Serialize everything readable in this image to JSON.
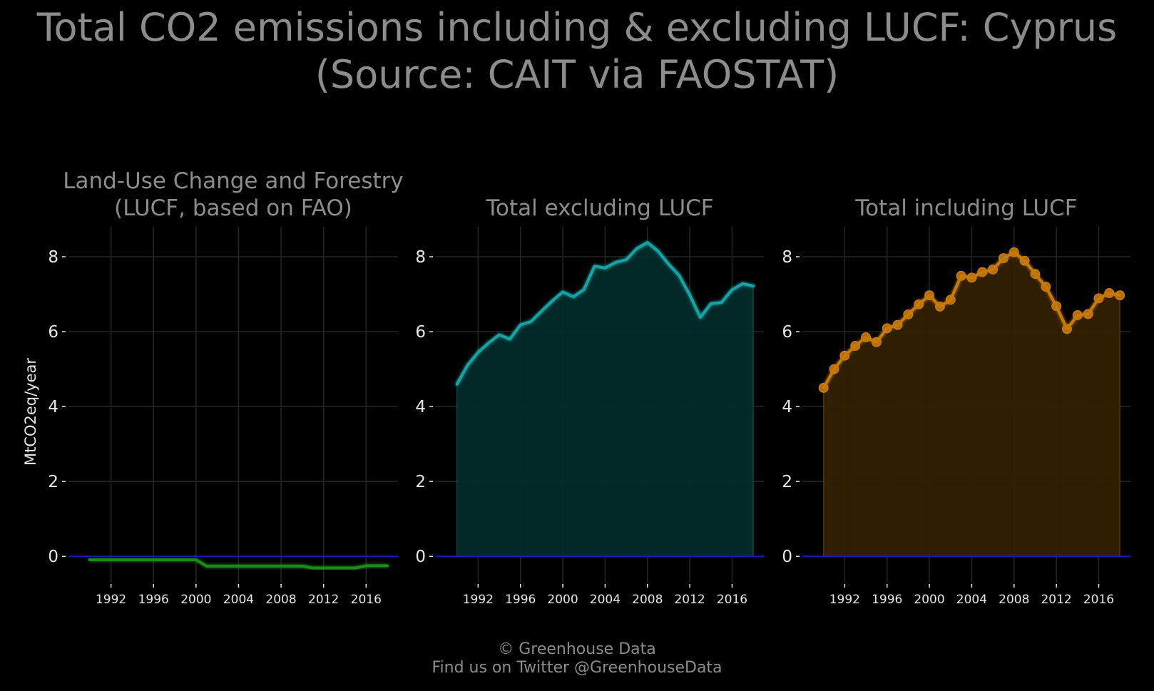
{
  "title_line1": "Total CO2 emissions including & excluding LUCF: Cyprus",
  "title_line2": "(Source: CAIT via FAOSTAT)",
  "footer_line1": "© Greenhouse Data",
  "footer_line2": "Find us on Twitter @GreenhouseData",
  "chart_data": [
    {
      "type": "line",
      "title": "Land-Use Change and Forestry\n(LUCF, based on FAO)",
      "ylabel": "MtCO2eq/year",
      "xlim": [
        1988,
        2019
      ],
      "ylim": [
        -0.7,
        8.8
      ],
      "yticks": [
        0,
        2,
        4,
        6,
        8
      ],
      "xticks": [
        1992,
        1996,
        2000,
        2004,
        2008,
        2012,
        2016
      ],
      "color": "#1a8a1a",
      "fill": false,
      "markers": false,
      "x": [
        1990,
        1991,
        1992,
        1993,
        1994,
        1995,
        1996,
        1997,
        1998,
        1999,
        2000,
        2001,
        2002,
        2003,
        2004,
        2005,
        2006,
        2007,
        2008,
        2009,
        2010,
        2011,
        2012,
        2013,
        2014,
        2015,
        2016,
        2017,
        2018
      ],
      "values": [
        -0.09,
        -0.09,
        -0.09,
        -0.09,
        -0.09,
        -0.09,
        -0.09,
        -0.09,
        -0.09,
        -0.09,
        -0.09,
        -0.26,
        -0.26,
        -0.26,
        -0.26,
        -0.26,
        -0.26,
        -0.26,
        -0.26,
        -0.26,
        -0.26,
        -0.31,
        -0.31,
        -0.31,
        -0.31,
        -0.31,
        -0.25,
        -0.25,
        -0.25
      ]
    },
    {
      "type": "area",
      "title": "Total excluding LUCF",
      "xlim": [
        1988,
        2019
      ],
      "ylim": [
        -0.7,
        8.8
      ],
      "yticks": [
        0,
        2,
        4,
        6,
        8
      ],
      "xticks": [
        1992,
        1996,
        2000,
        2004,
        2008,
        2012,
        2016
      ],
      "color": "#17a3a3",
      "fill": true,
      "fill_color": "#032a2a",
      "markers": false,
      "x": [
        1990,
        1991,
        1992,
        1993,
        1994,
        1995,
        1996,
        1997,
        1998,
        1999,
        2000,
        2001,
        2002,
        2003,
        2004,
        2005,
        2006,
        2007,
        2008,
        2009,
        2010,
        2011,
        2012,
        2013,
        2014,
        2015,
        2016,
        2017,
        2018
      ],
      "values": [
        4.6,
        5.1,
        5.45,
        5.7,
        5.92,
        5.8,
        6.18,
        6.27,
        6.55,
        6.82,
        7.06,
        6.93,
        7.12,
        7.75,
        7.7,
        7.85,
        7.92,
        8.22,
        8.38,
        8.15,
        7.8,
        7.5,
        6.98,
        6.38,
        6.75,
        6.78,
        7.12,
        7.28,
        7.22
      ]
    },
    {
      "type": "area",
      "title": "Total including LUCF",
      "xlim": [
        1988,
        2019
      ],
      "ylim": [
        -0.7,
        8.8
      ],
      "yticks": [
        0,
        2,
        4,
        6,
        8
      ],
      "xticks": [
        1992,
        1996,
        2000,
        2004,
        2008,
        2012,
        2016
      ],
      "color": "#c77a0a",
      "fill": true,
      "fill_color": "#332000",
      "markers": true,
      "x": [
        1990,
        1991,
        1992,
        1993,
        1994,
        1995,
        1996,
        1997,
        1998,
        1999,
        2000,
        2001,
        2002,
        2003,
        2004,
        2005,
        2006,
        2007,
        2008,
        2009,
        2010,
        2011,
        2012,
        2013,
        2014,
        2015,
        2016,
        2017,
        2018
      ],
      "values": [
        4.5,
        5.0,
        5.36,
        5.62,
        5.85,
        5.72,
        6.09,
        6.18,
        6.46,
        6.73,
        6.97,
        6.67,
        6.85,
        7.49,
        7.44,
        7.59,
        7.66,
        7.96,
        8.12,
        7.89,
        7.54,
        7.2,
        6.68,
        6.07,
        6.44,
        6.47,
        6.89,
        7.03,
        6.97
      ]
    }
  ]
}
